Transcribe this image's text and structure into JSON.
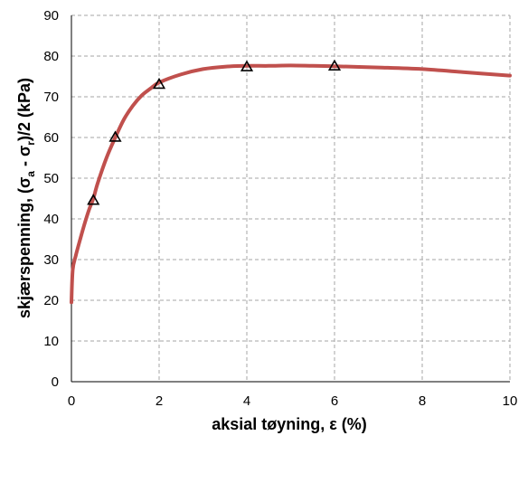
{
  "chart_data": {
    "type": "scatter",
    "xlabel": "aksial tøyning, ε (%)",
    "ylabel": {
      "prefix": "skjærspenning, (σ",
      "sub_a": "a",
      "mid": " - σ",
      "sub_r": "r",
      "suffix": ")/2 (kPa)"
    },
    "xlim": [
      0,
      10
    ],
    "ylim": [
      0,
      90
    ],
    "x_ticks": [
      0,
      2,
      4,
      6,
      8,
      10
    ],
    "y_ticks": [
      0,
      10,
      20,
      30,
      40,
      50,
      60,
      70,
      80,
      90
    ],
    "grid": true,
    "legend": "none",
    "series": [
      {
        "kind": "line",
        "color": "#c0504d",
        "x": [
          0.0,
          0.03,
          0.1,
          0.2,
          0.3,
          0.4,
          0.5,
          0.6,
          0.8,
          1.0,
          1.2,
          1.4,
          1.6,
          1.8,
          2.0,
          2.5,
          3.0,
          3.5,
          4.0,
          4.5,
          5.0,
          5.5,
          6.0,
          7.0,
          8.0,
          9.0,
          10.0
        ],
        "y": [
          19.5,
          27.5,
          31.0,
          35.0,
          38.8,
          42.2,
          45.0,
          48.8,
          55.0,
          60.0,
          64.5,
          67.8,
          70.3,
          72.0,
          73.5,
          75.5,
          76.8,
          77.4,
          77.6,
          77.6,
          77.7,
          77.6,
          77.5,
          77.2,
          76.8,
          76.0,
          75.2
        ]
      },
      {
        "kind": "markers",
        "marker": "triangle",
        "color": "#000000",
        "x": [
          0.5,
          1.0,
          2.0,
          4.0,
          6.0
        ],
        "y": [
          44.5,
          60.0,
          73.0,
          77.3,
          77.5
        ]
      }
    ]
  }
}
